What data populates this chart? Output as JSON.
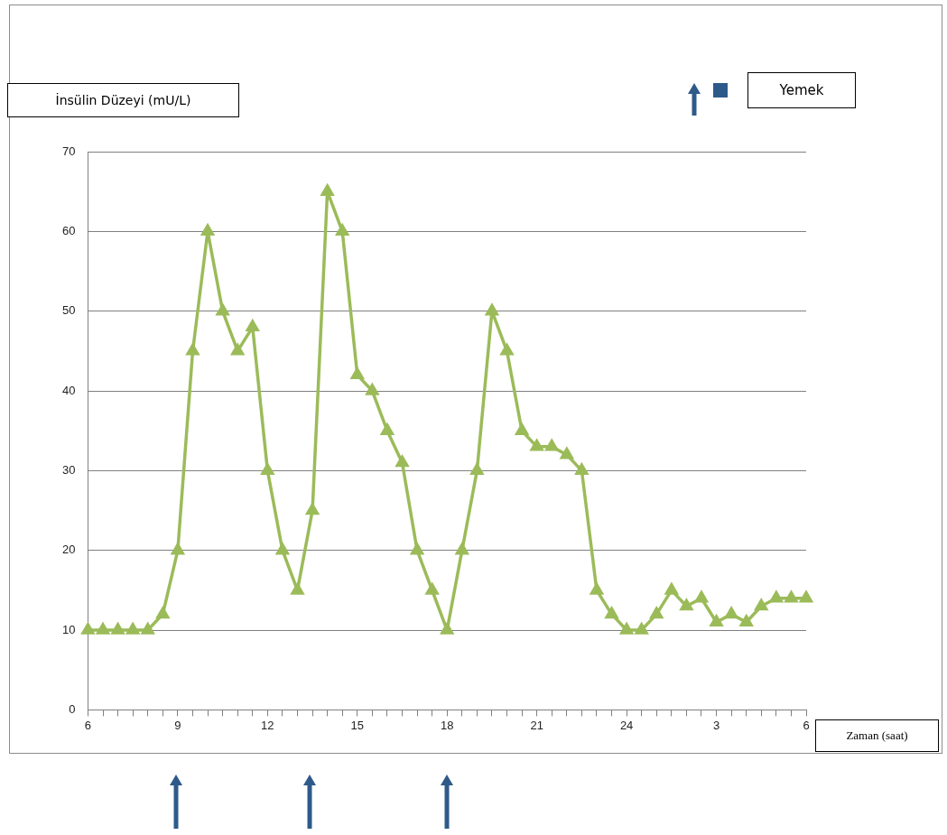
{
  "chart_data": {
    "type": "line",
    "ylabel": "İnsülin Düzeyi (mU/L)",
    "xlabel": "Zaman (saat)",
    "categories": [
      "6",
      null,
      null,
      null,
      null,
      null,
      "9",
      null,
      null,
      null,
      null,
      null,
      "12",
      null,
      null,
      null,
      null,
      null,
      "15",
      null,
      null,
      null,
      null,
      null,
      "18",
      null,
      null,
      null,
      null,
      null,
      "21",
      null,
      null,
      null,
      null,
      null,
      "24",
      null,
      null,
      null,
      null,
      null,
      "3",
      null,
      null,
      null,
      null,
      null,
      "6"
    ],
    "series": [
      {
        "color": "#9bbb59",
        "values": [
          10,
          10,
          10,
          10,
          10,
          12,
          20,
          45,
          60,
          50,
          45,
          48,
          30,
          20,
          15,
          25,
          65,
          60,
          42,
          40,
          35,
          31,
          20,
          15,
          10,
          20,
          30,
          50,
          45,
          35,
          33,
          33,
          32,
          30,
          15,
          12,
          10,
          10,
          12,
          15,
          13,
          14,
          11,
          12,
          11,
          13,
          14,
          14,
          14
        ]
      }
    ],
    "ylim": [
      0,
      70
    ],
    "yticks": [
      0,
      10,
      20,
      30,
      40,
      50,
      60,
      70
    ],
    "grid": "y",
    "marker": "triangle",
    "line_style": "solid",
    "annotations": [
      "Yemek"
    ]
  }
}
